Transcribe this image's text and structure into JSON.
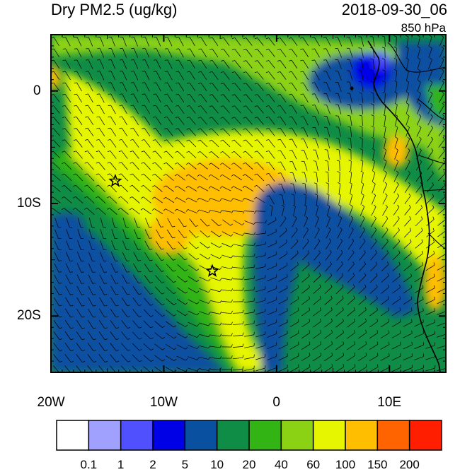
{
  "header": {
    "title": "Dry PM2.5 (ug/kg)",
    "datetime": "2018-09-30_06",
    "level": "850 hPa"
  },
  "map": {
    "lon_range": [
      -20,
      15
    ],
    "lat_range": [
      -25,
      5
    ],
    "x_ticks": [
      {
        "lon": -20,
        "label": "20W"
      },
      {
        "lon": -10,
        "label": "10W"
      },
      {
        "lon": 0,
        "label": "0"
      },
      {
        "lon": 10,
        "label": "10E"
      }
    ],
    "y_ticks": [
      {
        "lat": 0,
        "label": "0"
      },
      {
        "lat": -10,
        "label": "10S"
      },
      {
        "lat": -20,
        "label": "20S"
      }
    ],
    "star_markers": [
      {
        "name": "ascension-station",
        "lon": -14.3,
        "lat": -8.0
      },
      {
        "name": "st-helena-station",
        "lon": -5.7,
        "lat": -16.0
      }
    ]
  },
  "colorbar": {
    "colors": [
      "#ffffff",
      "#a0a0ff",
      "#5050ff",
      "#0000e6",
      "#0a50a0",
      "#0f8c46",
      "#32b414",
      "#8cd214",
      "#e6f500",
      "#ffbe00",
      "#ff6400",
      "#ff1e00"
    ],
    "labels": [
      "0.1",
      "1",
      "2",
      "5",
      "10",
      "20",
      "40",
      "60",
      "100",
      "150",
      "200"
    ]
  }
}
